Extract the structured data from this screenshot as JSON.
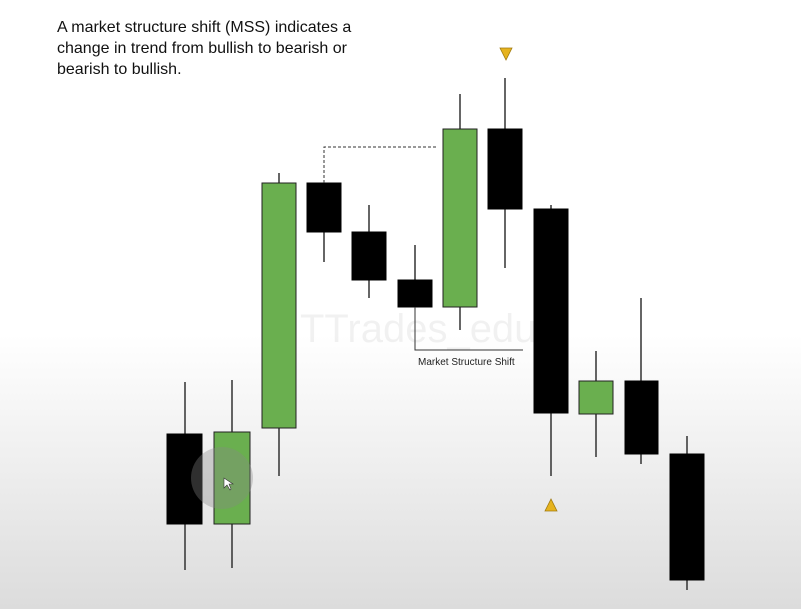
{
  "description_lines": [
    "A market structure shift (MSS) indicates a",
    "change in trend from bullish to bearish or",
    "bearish to bullish."
  ],
  "watermark": "TTrades_edu",
  "annotation": "Market Structure Shift"
}
